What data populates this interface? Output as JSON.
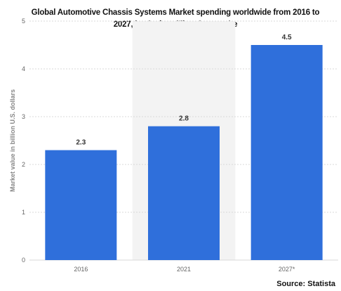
{
  "chart_data": {
    "type": "bar",
    "title": "Global Automotive Chassis Systems Market spending worldwide from 2016 to 2027, by Carbon Fiber Composite",
    "ylabel": "Market value in billion U.S. dollars",
    "xlabel": "",
    "categories": [
      "2016",
      "2021",
      "2027*"
    ],
    "values": [
      2.3,
      2.8,
      4.5
    ],
    "data_labels": [
      "2.3",
      "2.8",
      "4.5"
    ],
    "yticks": [
      0,
      1,
      2,
      3,
      4,
      5
    ],
    "ylim": [
      0,
      5
    ],
    "highlight_category_index": 1,
    "grid": true,
    "colors": {
      "bar": "#2f6fdb",
      "grid": "#d9d9d9",
      "highlight_band": "#f3f3f3",
      "axis_text": "#666666",
      "label_text": "#333333"
    }
  },
  "source": "Source: Statista"
}
